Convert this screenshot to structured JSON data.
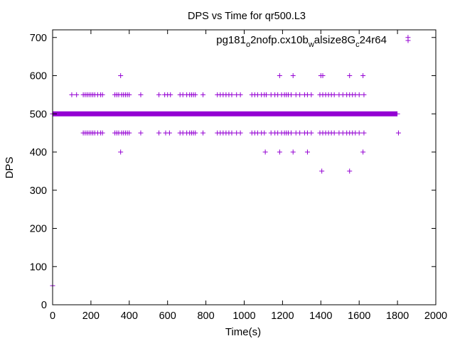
{
  "chart_data": {
    "type": "scatter",
    "title": "DPS vs Time for qr500.L3",
    "xlabel": "Time(s)",
    "ylabel": "DPS",
    "xlim": [
      0,
      2000
    ],
    "ylim": [
      0,
      720
    ],
    "x_ticks": [
      "0",
      "200",
      "400",
      "600",
      "800",
      "1000",
      "1200",
      "1400",
      "1600",
      "1800",
      "2000"
    ],
    "y_ticks": [
      "0",
      "100",
      "200",
      "300",
      "400",
      "500",
      "600",
      "700"
    ],
    "x_tick_values": [
      0,
      200,
      400,
      600,
      800,
      1000,
      1200,
      1400,
      1600,
      1800,
      2000
    ],
    "y_tick_values": [
      0,
      100,
      200,
      300,
      400,
      500,
      600,
      700
    ],
    "grid": false,
    "legend_position": "top-right",
    "marker": "plus",
    "color": "#9400d3",
    "series": [
      {
        "name_parts": [
          {
            "text": "pg181",
            "sub": false
          },
          {
            "text": "o",
            "sub": true
          },
          {
            "text": "2nofp.cx10b",
            "sub": false
          },
          {
            "text": "w",
            "sub": true
          },
          {
            "text": "alsize8G",
            "sub": false
          },
          {
            "text": "c",
            "sub": true
          },
          {
            "text": "24r64",
            "sub": false
          }
        ],
        "main_line": {
          "y": 500,
          "x_start": 0,
          "x_end": 1800
        },
        "points": [
          {
            "x": 0,
            "y": 50
          },
          {
            "x": 1855,
            "y": 700
          },
          {
            "x": 1805,
            "y": 450
          },
          {
            "x": 355,
            "y": 600
          },
          {
            "x": 1185,
            "y": 600
          },
          {
            "x": 1255,
            "y": 600
          },
          {
            "x": 1400,
            "y": 600
          },
          {
            "x": 1410,
            "y": 600
          },
          {
            "x": 1550,
            "y": 600
          },
          {
            "x": 1620,
            "y": 600
          },
          {
            "x": 355,
            "y": 400
          },
          {
            "x": 1110,
            "y": 400
          },
          {
            "x": 1185,
            "y": 400
          },
          {
            "x": 1255,
            "y": 400
          },
          {
            "x": 1330,
            "y": 400
          },
          {
            "x": 1620,
            "y": 400
          },
          {
            "x": 1405,
            "y": 350
          },
          {
            "x": 1550,
            "y": 350
          },
          {
            "x": 100,
            "y": 550
          },
          {
            "x": 125,
            "y": 550
          },
          {
            "x": 160,
            "y": 550
          },
          {
            "x": 170,
            "y": 550
          },
          {
            "x": 180,
            "y": 550
          },
          {
            "x": 190,
            "y": 550
          },
          {
            "x": 200,
            "y": 550
          },
          {
            "x": 210,
            "y": 550
          },
          {
            "x": 220,
            "y": 550
          },
          {
            "x": 235,
            "y": 550
          },
          {
            "x": 250,
            "y": 550
          },
          {
            "x": 260,
            "y": 550
          },
          {
            "x": 325,
            "y": 550
          },
          {
            "x": 335,
            "y": 550
          },
          {
            "x": 345,
            "y": 550
          },
          {
            "x": 360,
            "y": 550
          },
          {
            "x": 370,
            "y": 550
          },
          {
            "x": 380,
            "y": 550
          },
          {
            "x": 390,
            "y": 550
          },
          {
            "x": 400,
            "y": 550
          },
          {
            "x": 460,
            "y": 550
          },
          {
            "x": 555,
            "y": 550
          },
          {
            "x": 585,
            "y": 550
          },
          {
            "x": 600,
            "y": 550
          },
          {
            "x": 615,
            "y": 550
          },
          {
            "x": 665,
            "y": 550
          },
          {
            "x": 680,
            "y": 550
          },
          {
            "x": 700,
            "y": 550
          },
          {
            "x": 715,
            "y": 550
          },
          {
            "x": 725,
            "y": 550
          },
          {
            "x": 735,
            "y": 550
          },
          {
            "x": 745,
            "y": 550
          },
          {
            "x": 785,
            "y": 550
          },
          {
            "x": 860,
            "y": 550
          },
          {
            "x": 875,
            "y": 550
          },
          {
            "x": 890,
            "y": 550
          },
          {
            "x": 905,
            "y": 550
          },
          {
            "x": 920,
            "y": 550
          },
          {
            "x": 935,
            "y": 550
          },
          {
            "x": 960,
            "y": 550
          },
          {
            "x": 980,
            "y": 550
          },
          {
            "x": 1040,
            "y": 550
          },
          {
            "x": 1055,
            "y": 550
          },
          {
            "x": 1070,
            "y": 550
          },
          {
            "x": 1090,
            "y": 550
          },
          {
            "x": 1105,
            "y": 550
          },
          {
            "x": 1115,
            "y": 550
          },
          {
            "x": 1140,
            "y": 550
          },
          {
            "x": 1160,
            "y": 550
          },
          {
            "x": 1175,
            "y": 550
          },
          {
            "x": 1195,
            "y": 550
          },
          {
            "x": 1210,
            "y": 550
          },
          {
            "x": 1220,
            "y": 550
          },
          {
            "x": 1230,
            "y": 550
          },
          {
            "x": 1245,
            "y": 550
          },
          {
            "x": 1270,
            "y": 550
          },
          {
            "x": 1290,
            "y": 550
          },
          {
            "x": 1315,
            "y": 550
          },
          {
            "x": 1330,
            "y": 550
          },
          {
            "x": 1350,
            "y": 550
          },
          {
            "x": 1395,
            "y": 550
          },
          {
            "x": 1410,
            "y": 550
          },
          {
            "x": 1425,
            "y": 550
          },
          {
            "x": 1440,
            "y": 550
          },
          {
            "x": 1455,
            "y": 550
          },
          {
            "x": 1470,
            "y": 550
          },
          {
            "x": 1495,
            "y": 550
          },
          {
            "x": 1515,
            "y": 550
          },
          {
            "x": 1535,
            "y": 550
          },
          {
            "x": 1550,
            "y": 550
          },
          {
            "x": 1565,
            "y": 550
          },
          {
            "x": 1580,
            "y": 550
          },
          {
            "x": 1600,
            "y": 550
          },
          {
            "x": 1625,
            "y": 550
          },
          {
            "x": 160,
            "y": 450
          },
          {
            "x": 170,
            "y": 450
          },
          {
            "x": 180,
            "y": 450
          },
          {
            "x": 190,
            "y": 450
          },
          {
            "x": 200,
            "y": 450
          },
          {
            "x": 210,
            "y": 450
          },
          {
            "x": 220,
            "y": 450
          },
          {
            "x": 235,
            "y": 450
          },
          {
            "x": 250,
            "y": 450
          },
          {
            "x": 260,
            "y": 450
          },
          {
            "x": 325,
            "y": 450
          },
          {
            "x": 335,
            "y": 450
          },
          {
            "x": 345,
            "y": 450
          },
          {
            "x": 360,
            "y": 450
          },
          {
            "x": 370,
            "y": 450
          },
          {
            "x": 380,
            "y": 450
          },
          {
            "x": 390,
            "y": 450
          },
          {
            "x": 400,
            "y": 450
          },
          {
            "x": 460,
            "y": 450
          },
          {
            "x": 555,
            "y": 450
          },
          {
            "x": 590,
            "y": 450
          },
          {
            "x": 610,
            "y": 450
          },
          {
            "x": 665,
            "y": 450
          },
          {
            "x": 680,
            "y": 450
          },
          {
            "x": 700,
            "y": 450
          },
          {
            "x": 715,
            "y": 450
          },
          {
            "x": 725,
            "y": 450
          },
          {
            "x": 735,
            "y": 450
          },
          {
            "x": 745,
            "y": 450
          },
          {
            "x": 785,
            "y": 450
          },
          {
            "x": 860,
            "y": 450
          },
          {
            "x": 875,
            "y": 450
          },
          {
            "x": 890,
            "y": 450
          },
          {
            "x": 905,
            "y": 450
          },
          {
            "x": 920,
            "y": 450
          },
          {
            "x": 935,
            "y": 450
          },
          {
            "x": 960,
            "y": 450
          },
          {
            "x": 980,
            "y": 450
          },
          {
            "x": 1040,
            "y": 450
          },
          {
            "x": 1055,
            "y": 450
          },
          {
            "x": 1070,
            "y": 450
          },
          {
            "x": 1090,
            "y": 450
          },
          {
            "x": 1105,
            "y": 450
          },
          {
            "x": 1140,
            "y": 450
          },
          {
            "x": 1160,
            "y": 450
          },
          {
            "x": 1175,
            "y": 450
          },
          {
            "x": 1195,
            "y": 450
          },
          {
            "x": 1210,
            "y": 450
          },
          {
            "x": 1220,
            "y": 450
          },
          {
            "x": 1230,
            "y": 450
          },
          {
            "x": 1245,
            "y": 450
          },
          {
            "x": 1270,
            "y": 450
          },
          {
            "x": 1290,
            "y": 450
          },
          {
            "x": 1315,
            "y": 450
          },
          {
            "x": 1330,
            "y": 450
          },
          {
            "x": 1350,
            "y": 450
          },
          {
            "x": 1395,
            "y": 450
          },
          {
            "x": 1410,
            "y": 450
          },
          {
            "x": 1425,
            "y": 450
          },
          {
            "x": 1440,
            "y": 450
          },
          {
            "x": 1455,
            "y": 450
          },
          {
            "x": 1470,
            "y": 450
          },
          {
            "x": 1495,
            "y": 450
          },
          {
            "x": 1515,
            "y": 450
          },
          {
            "x": 1535,
            "y": 450
          },
          {
            "x": 1550,
            "y": 450
          },
          {
            "x": 1565,
            "y": 450
          },
          {
            "x": 1580,
            "y": 450
          },
          {
            "x": 1600,
            "y": 450
          },
          {
            "x": 1625,
            "y": 450
          }
        ]
      }
    ]
  }
}
